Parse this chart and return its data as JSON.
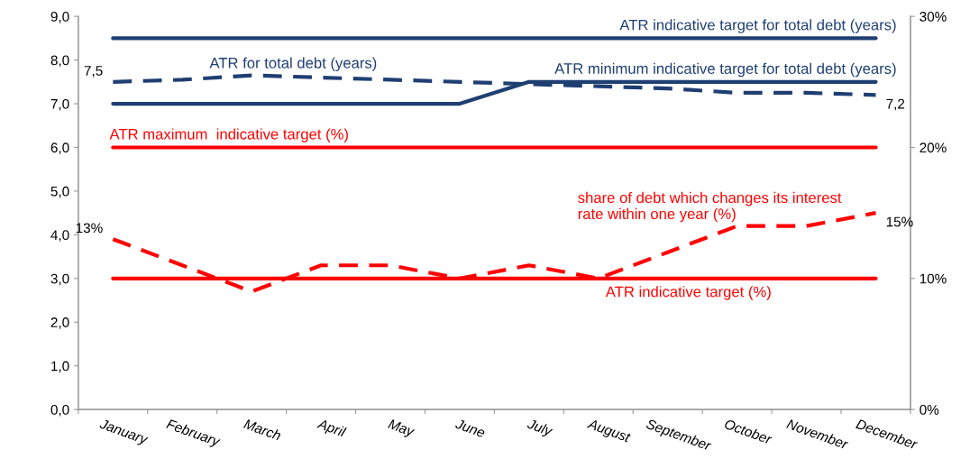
{
  "chart_data": {
    "type": "line",
    "categories": [
      "January",
      "February",
      "March",
      "April",
      "May",
      "June",
      "July",
      "August",
      "September",
      "October",
      "November",
      "December"
    ],
    "series": [
      {
        "name": "ATR indicative target for total debt (years)",
        "color": "#1f3f73",
        "line_style": "solid",
        "values": [
          8.5,
          8.5,
          8.5,
          8.5,
          8.5,
          8.5,
          8.5,
          8.5,
          8.5,
          8.5,
          8.5,
          8.5
        ]
      },
      {
        "name": "ATR minimum indicative target for total debt (years)",
        "color": "#1f3f73",
        "line_style": "solid",
        "values": [
          7.0,
          7.0,
          7.0,
          7.0,
          7.0,
          7.0,
          7.5,
          7.5,
          7.5,
          7.5,
          7.5,
          7.5
        ]
      },
      {
        "name": "ATR for total debt (years)",
        "color": "#1f3f73",
        "line_style": "dashed",
        "values": [
          7.5,
          7.55,
          7.65,
          7.6,
          7.55,
          7.5,
          7.45,
          7.4,
          7.35,
          7.25,
          7.25,
          7.2
        ],
        "value_labels": [
          "7,5",
          null,
          null,
          null,
          null,
          null,
          null,
          null,
          null,
          null,
          null,
          "7,2"
        ]
      },
      {
        "name": "ATR maximum  indicative target (%)",
        "color": "#ff0000",
        "line_style": "solid",
        "axis": "y2",
        "values": [
          20,
          20,
          20,
          20,
          20,
          20,
          20,
          20,
          20,
          20,
          20,
          20
        ]
      },
      {
        "name": "share of debt which changes its interest\nrate within one year (%)",
        "color": "#ff0000",
        "line_style": "dashed",
        "axis": "y2",
        "values": [
          13,
          11,
          9,
          11,
          11,
          10,
          11,
          10,
          12,
          14,
          14,
          15
        ],
        "value_labels": [
          "13%",
          null,
          null,
          null,
          null,
          null,
          null,
          null,
          null,
          null,
          null,
          "15%"
        ]
      },
      {
        "name": "ATR indicative target (%)",
        "color": "#ff0000",
        "line_style": "solid",
        "axis": "y2",
        "values": [
          10,
          10,
          10,
          10,
          10,
          10,
          10,
          10,
          10,
          10,
          10,
          10
        ]
      }
    ],
    "ylim": [
      0,
      9
    ],
    "yticks": [
      {
        "value": 0,
        "label": "0,0"
      },
      {
        "value": 1,
        "label": "1,0"
      },
      {
        "value": 2,
        "label": "2,0"
      },
      {
        "value": 3,
        "label": "3,0"
      },
      {
        "value": 4,
        "label": "4,0"
      },
      {
        "value": 5,
        "label": "5,0"
      },
      {
        "value": 6,
        "label": "6,0"
      },
      {
        "value": 7,
        "label": "7,0"
      },
      {
        "value": 8,
        "label": "8,0"
      },
      {
        "value": 9,
        "label": "9,0"
      }
    ],
    "y2lim": [
      0,
      30
    ],
    "y2ticks": [
      {
        "value": 0,
        "label": "0%"
      },
      {
        "value": 10,
        "label": "10%"
      },
      {
        "value": 20,
        "label": "20%"
      },
      {
        "value": 30,
        "label": "30%"
      }
    ],
    "grid": false,
    "legend": false,
    "marker": "none"
  }
}
